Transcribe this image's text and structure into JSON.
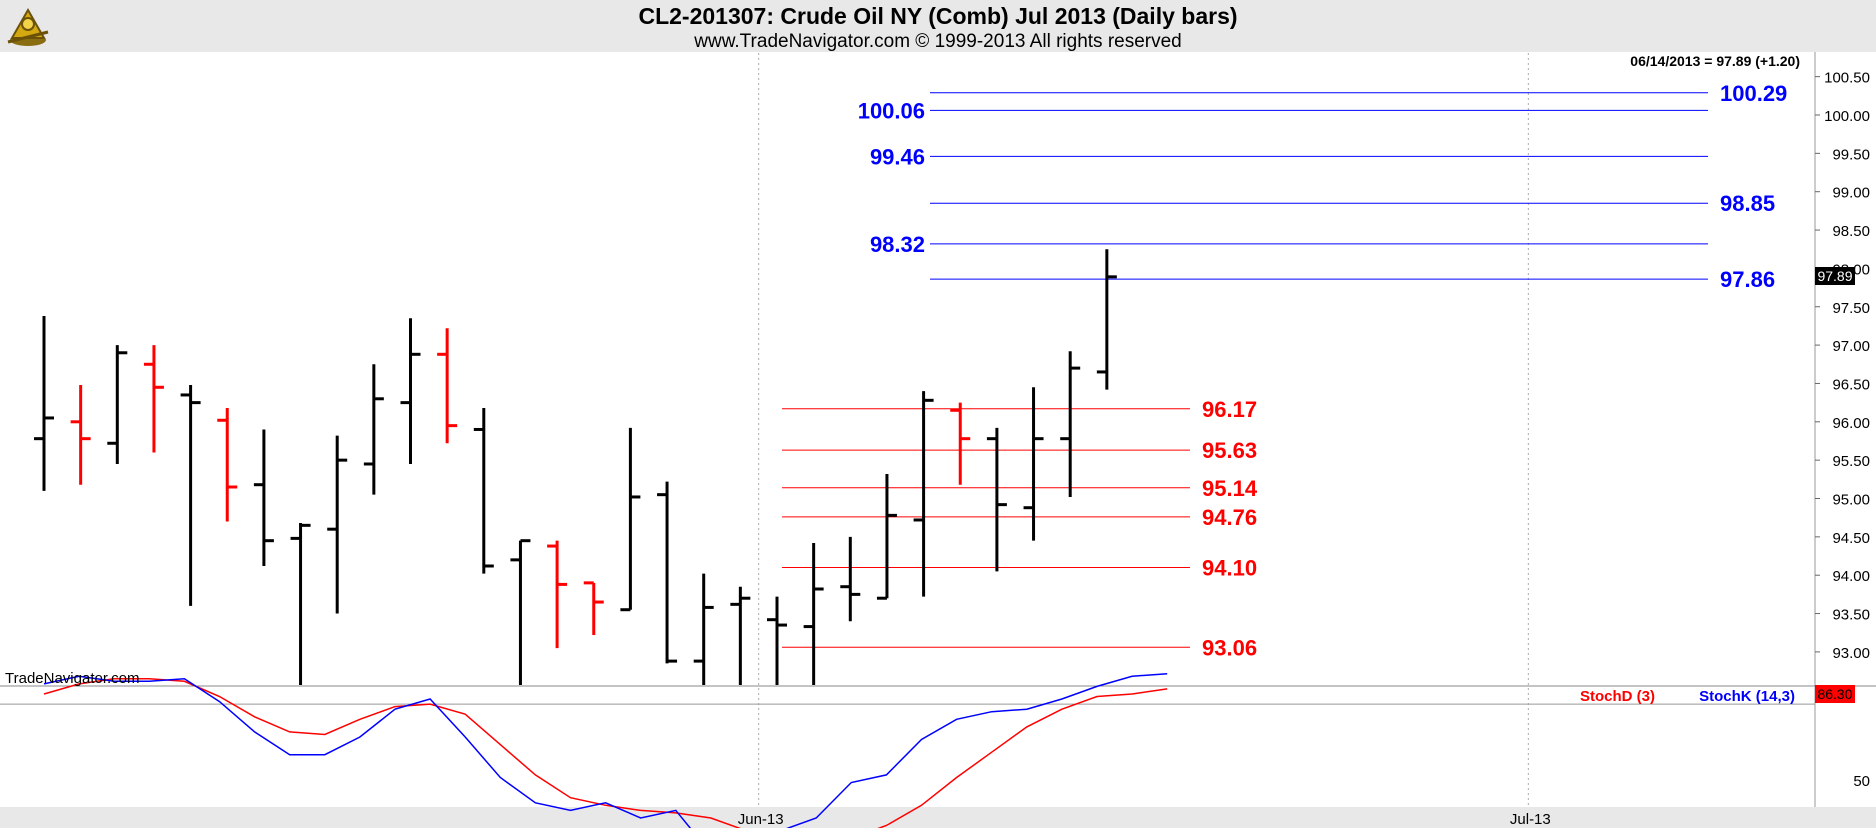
{
  "header": {
    "title": "CL2-201307:  Crude Oil NY (Comb) Jul 2013  (Daily bars)",
    "subtitle": "www.TradeNavigator.com © 1999-2013 All rights reserved"
  },
  "chart_data": [
    {
      "type": "ohlc",
      "title": "CL2-201307:  Crude Oil NY (Comb) Jul 2013  (Daily bars)",
      "last_label": "06/14/2013 = 97.89 (+1.20)",
      "watermark": "TradeNavigator.com",
      "current_price": "97.89",
      "ylim": [
        92.6,
        100.8
      ],
      "y_ticks": [
        "100.50",
        "100.00",
        "99.50",
        "99.00",
        "98.50",
        "98.00",
        "97.50",
        "97.00",
        "96.50",
        "96.00",
        "95.50",
        "95.00",
        "94.50",
        "94.00",
        "93.50",
        "93.00"
      ],
      "x_ticks": [
        {
          "label": "Jun-13",
          "bar": 19.5
        },
        {
          "label": "Jul-13",
          "bar": 40.5
        }
      ],
      "grid": "vertical dotted at month starts",
      "bars": [
        {
          "o": 95.78,
          "h": 97.38,
          "l": 95.1,
          "c": 96.05,
          "color": "black"
        },
        {
          "o": 96.0,
          "h": 96.48,
          "l": 95.18,
          "c": 95.78,
          "color": "red"
        },
        {
          "o": 95.72,
          "h": 97.0,
          "l": 95.45,
          "c": 96.9,
          "color": "black"
        },
        {
          "o": 96.75,
          "h": 97.0,
          "l": 95.6,
          "c": 96.45,
          "color": "red"
        },
        {
          "o": 96.35,
          "h": 96.48,
          "l": 93.6,
          "c": 96.25,
          "color": "black"
        },
        {
          "o": 96.02,
          "h": 96.18,
          "l": 94.7,
          "c": 95.15,
          "color": "red"
        },
        {
          "o": 95.18,
          "h": 95.9,
          "l": 94.12,
          "c": 94.45,
          "color": "black"
        },
        {
          "o": 94.48,
          "h": 94.68,
          "l": 92.0,
          "c": 94.65,
          "color": "black"
        },
        {
          "o": 94.6,
          "h": 95.82,
          "l": 93.5,
          "c": 95.5,
          "color": "black"
        },
        {
          "o": 95.45,
          "h": 96.75,
          "l": 95.05,
          "c": 96.3,
          "color": "black"
        },
        {
          "o": 96.25,
          "h": 97.35,
          "l": 95.45,
          "c": 96.88,
          "color": "black"
        },
        {
          "o": 96.88,
          "h": 97.22,
          "l": 95.72,
          "c": 95.95,
          "color": "red"
        },
        {
          "o": 95.9,
          "h": 96.18,
          "l": 94.02,
          "c": 94.12,
          "color": "black"
        },
        {
          "o": 94.2,
          "h": 94.45,
          "l": 92.0,
          "c": 94.45,
          "color": "black"
        },
        {
          "o": 94.38,
          "h": 94.45,
          "l": 93.05,
          "c": 93.88,
          "color": "red"
        },
        {
          "o": 93.9,
          "h": 93.9,
          "l": 93.22,
          "c": 93.65,
          "color": "red"
        },
        {
          "o": 93.55,
          "h": 95.92,
          "l": 93.55,
          "c": 95.02,
          "color": "black"
        },
        {
          "o": 95.05,
          "h": 95.22,
          "l": 92.85,
          "c": 92.88,
          "color": "black"
        },
        {
          "o": 92.88,
          "h": 94.02,
          "l": 92.3,
          "c": 93.58,
          "color": "black"
        },
        {
          "o": 93.62,
          "h": 93.85,
          "l": 92.5,
          "c": 93.7,
          "color": "black"
        },
        {
          "o": 93.42,
          "h": 93.72,
          "l": 92.4,
          "c": 93.35,
          "color": "black"
        },
        {
          "o": 93.33,
          "h": 94.42,
          "l": 92.0,
          "c": 93.82,
          "color": "black"
        },
        {
          "o": 93.85,
          "h": 94.5,
          "l": 93.4,
          "c": 93.75,
          "color": "black"
        },
        {
          "o": 93.7,
          "h": 95.32,
          "l": 93.7,
          "c": 94.78,
          "color": "black"
        },
        {
          "o": 94.72,
          "h": 96.4,
          "l": 93.72,
          "c": 96.28,
          "color": "black"
        },
        {
          "o": 96.15,
          "h": 96.25,
          "l": 95.18,
          "c": 95.78,
          "color": "red"
        },
        {
          "o": 95.78,
          "h": 95.92,
          "l": 94.05,
          "c": 94.92,
          "color": "black"
        },
        {
          "o": 94.88,
          "h": 96.45,
          "l": 94.45,
          "c": 95.78,
          "color": "black"
        },
        {
          "o": 95.78,
          "h": 96.92,
          "l": 95.02,
          "c": 96.7,
          "color": "black"
        },
        {
          "o": 96.65,
          "h": 98.25,
          "l": 96.42,
          "c": 97.89,
          "color": "black"
        }
      ],
      "levels": [
        {
          "value": 100.29,
          "label": "100.29",
          "color": "#0000ff"
        },
        {
          "value": 100.06,
          "label": "100.06",
          "color": "#0000ff"
        },
        {
          "value": 99.46,
          "label": "99.46",
          "color": "#0000ff"
        },
        {
          "value": 98.85,
          "label": "98.85",
          "color": "#0000ff"
        },
        {
          "value": 98.32,
          "label": "98.32",
          "color": "#0000ff"
        },
        {
          "value": 97.86,
          "label": "97.86",
          "color": "#0000ff"
        },
        {
          "value": 96.17,
          "label": "96.17",
          "color": "#ff0000"
        },
        {
          "value": 95.63,
          "label": "95.63",
          "color": "#ff0000"
        },
        {
          "value": 95.14,
          "label": "95.14",
          "color": "#ff0000"
        },
        {
          "value": 94.76,
          "label": "94.76",
          "color": "#ff0000"
        },
        {
          "value": 94.1,
          "label": "94.10",
          "color": "#ff0000"
        },
        {
          "value": 93.06,
          "label": "93.06",
          "color": "#ff0000"
        }
      ]
    },
    {
      "type": "line",
      "legend": [
        "StochD (3)",
        "StochK (14,3)"
      ],
      "current_value": "86.30",
      "ylim": [
        0,
        100
      ],
      "y_ticks": [
        "50"
      ],
      "reference_lines": [
        80,
        20
      ],
      "series": [
        {
          "name": "StochD (3)",
          "color": "#ff0000",
          "values": [
            84,
            88,
            90,
            90,
            89,
            83,
            75,
            69,
            68,
            74,
            79,
            80,
            76,
            64,
            52,
            43,
            40,
            38,
            37,
            35,
            30,
            25,
            24,
            27,
            32,
            40,
            51,
            61,
            71,
            78,
            83,
            84,
            86
          ]
        },
        {
          "name": "StochK (14,3)",
          "color": "#0000ff",
          "values": [
            88,
            91,
            89,
            89,
            90,
            81,
            69,
            60,
            60,
            67,
            78,
            82,
            67,
            51,
            41,
            38,
            41,
            35,
            38,
            21,
            27,
            30,
            35,
            49,
            52,
            66,
            74,
            77,
            78,
            82,
            87,
            91,
            92
          ]
        }
      ]
    }
  ]
}
